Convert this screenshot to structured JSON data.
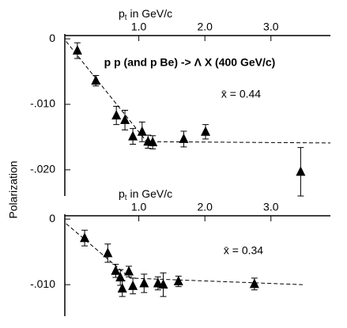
{
  "chart_data": [
    {
      "type": "scatter",
      "xlabel": [
        "p",
        "t",
        " in GeV/c"
      ],
      "ylabel": "Polarization",
      "annotations": [
        "p p (and p Be) -> Λ X (400 GeV/c)",
        "x̄ = 0.44"
      ],
      "xlim": [
        -0.12,
        3.9
      ],
      "xticks": [
        {
          "value": 1,
          "label": "1.0"
        },
        {
          "value": 2,
          "label": "2.0"
        },
        {
          "value": 3,
          "label": "3.0"
        }
      ],
      "ylim": [
        -0.024,
        0.0005
      ],
      "yticks": [
        0,
        {
          "value": -0.01,
          "label": "-.010"
        },
        {
          "value": -0.02,
          "label": "-.020"
        }
      ],
      "color": "#000000",
      "x": [
        0.07,
        0.35,
        0.66,
        0.79,
        0.91,
        1.05,
        1.14,
        1.21,
        1.68,
        2.01,
        3.45
      ],
      "values": [
        -0.0018,
        -0.0064,
        -0.0117,
        -0.0124,
        -0.0149,
        -0.0142,
        -0.0157,
        -0.0158,
        -0.0153,
        -0.0142,
        -0.0203
      ],
      "errors": [
        0.0012,
        0.0008,
        0.0014,
        0.0015,
        0.0012,
        0.0015,
        0.001,
        0.001,
        0.0012,
        0.0011,
        0.0037
      ],
      "fit": {
        "x": [
          -0.1,
          1.12,
          3.9
        ],
        "y": [
          -0.0004,
          -0.0157,
          -0.0159
        ]
      }
    },
    {
      "type": "scatter",
      "xlabel": [
        "p",
        "t",
        " in GeV/c"
      ],
      "annotations": [
        "x̄ = 0.34"
      ],
      "xlim": [
        -0.12,
        3.9
      ],
      "xticks": [
        {
          "value": 1,
          "label": "1.0"
        },
        {
          "value": 2,
          "label": "2.0"
        },
        {
          "value": 3,
          "label": "3.0"
        }
      ],
      "ylim": [
        -0.0148,
        0.0005
      ],
      "yticks": [
        0,
        {
          "value": -0.01,
          "label": "-.010"
        }
      ],
      "color": "#000000",
      "x": [
        0.18,
        0.53,
        0.65,
        0.72,
        0.75,
        0.85,
        0.91,
        1.08,
        1.29,
        1.37,
        1.6,
        2.75
      ],
      "values": [
        -0.0029,
        -0.0052,
        -0.0079,
        -0.0089,
        -0.0106,
        -0.008,
        -0.0102,
        -0.0098,
        -0.0098,
        -0.01,
        -0.0095,
        -0.0099
      ],
      "errors": [
        0.0012,
        0.0014,
        0.001,
        0.0012,
        0.0012,
        0.0008,
        0.0012,
        0.0014,
        0.001,
        0.0018,
        0.0008,
        0.0009
      ],
      "fit": {
        "x": [
          -0.1,
          0.87,
          3.48
        ],
        "y": [
          -0.0007,
          -0.009,
          -0.01
        ]
      }
    }
  ]
}
